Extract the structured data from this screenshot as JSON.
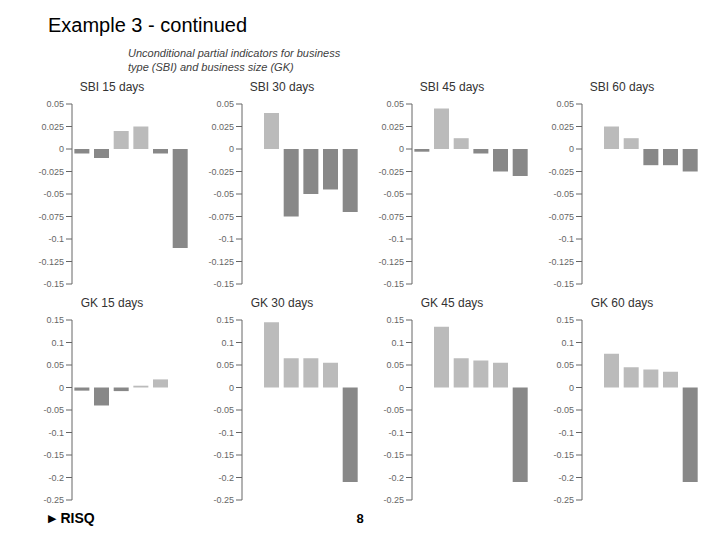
{
  "title": "Example 3 - continued",
  "subtitle": "Unconditional partial indicators for business\ntype (SBI) and business size (GK)",
  "annotations": [
    "8",
    "▶",
    "RISQ"
  ],
  "chart_data": [
    {
      "type": "bar",
      "title": "SBI 15 days",
      "categories": [
        null,
        null,
        null,
        null,
        null,
        null
      ],
      "values": [
        -0.005,
        -0.01,
        0.02,
        0.025,
        -0.005,
        -0.11
      ],
      "colors": [
        "#888888",
        "#888888",
        "#bbbbbb",
        "#bbbbbb",
        "#888888",
        "#888888"
      ],
      "ylim": [
        -0.15,
        0.05
      ],
      "yticks": [
        0.05,
        0.025,
        0,
        -0.025,
        -0.05,
        -0.075,
        -0.1,
        -0.125,
        -0.15
      ],
      "grid": false,
      "tick_labels": "y"
    },
    {
      "type": "bar",
      "title": "SBI 30 days",
      "categories": [
        null,
        null,
        null,
        null,
        null,
        null
      ],
      "values": [
        0.0,
        0.04,
        -0.075,
        -0.05,
        -0.045,
        -0.07
      ],
      "colors": [
        "#bbbbbb",
        "#bbbbbb",
        "#888888",
        "#888888",
        "#888888",
        "#888888"
      ],
      "ylim": [
        -0.15,
        0.05
      ],
      "yticks": [
        0.05,
        0.025,
        0,
        -0.025,
        -0.05,
        -0.075,
        -0.1,
        -0.125,
        -0.15
      ],
      "grid": false,
      "tick_labels": "y"
    },
    {
      "type": "bar",
      "title": "SBI 45 days",
      "categories": [
        null,
        null,
        null,
        null,
        null,
        null
      ],
      "values": [
        -0.003,
        0.045,
        0.012,
        -0.005,
        -0.025,
        -0.03
      ],
      "colors": [
        "#888888",
        "#bbbbbb",
        "#bbbbbb",
        "#888888",
        "#888888",
        "#888888"
      ],
      "ylim": [
        -0.15,
        0.05
      ],
      "yticks": [
        0.05,
        0.025,
        0,
        -0.025,
        -0.05,
        -0.075,
        -0.1,
        -0.125,
        -0.15
      ],
      "grid": false,
      "tick_labels": "y"
    },
    {
      "type": "bar",
      "title": "SBI 60 days",
      "categories": [
        null,
        null,
        null,
        null,
        null,
        null
      ],
      "values": [
        0.0,
        0.025,
        0.012,
        -0.018,
        -0.018,
        -0.025
      ],
      "colors": [
        "#bbbbbb",
        "#bbbbbb",
        "#bbbbbb",
        "#888888",
        "#888888",
        "#888888"
      ],
      "ylim": [
        -0.15,
        0.05
      ],
      "yticks": [
        0.05,
        0.025,
        0,
        -0.025,
        -0.05,
        -0.075,
        -0.1,
        -0.125,
        -0.15
      ],
      "grid": false,
      "tick_labels": "y"
    },
    {
      "type": "bar",
      "title": "GK 15 days",
      "categories": [
        null,
        null,
        null,
        null,
        null,
        null
      ],
      "values": [
        -0.007,
        -0.04,
        -0.008,
        0.004,
        0.018,
        0.0
      ],
      "colors": [
        "#888888",
        "#888888",
        "#888888",
        "#bbbbbb",
        "#bbbbbb",
        "#bbbbbb"
      ],
      "ylim": [
        -0.25,
        0.15
      ],
      "yticks": [
        0.15,
        0.1,
        0.05,
        0,
        -0.05,
        -0.1,
        -0.15,
        -0.2,
        -0.25
      ],
      "grid": false,
      "tick_labels": "y"
    },
    {
      "type": "bar",
      "title": "GK 30 days",
      "categories": [
        null,
        null,
        null,
        null,
        null,
        null
      ],
      "values": [
        0.0,
        0.145,
        0.065,
        0.065,
        0.055,
        -0.21
      ],
      "colors": [
        "#bbbbbb",
        "#bbbbbb",
        "#bbbbbb",
        "#bbbbbb",
        "#bbbbbb",
        "#888888"
      ],
      "ylim": [
        -0.25,
        0.15
      ],
      "yticks": [
        0.15,
        0.1,
        0.05,
        0,
        -0.05,
        -0.1,
        -0.15,
        -0.2,
        -0.25
      ],
      "grid": false,
      "tick_labels": "y"
    },
    {
      "type": "bar",
      "title": "GK 45 days",
      "categories": [
        null,
        null,
        null,
        null,
        null,
        null
      ],
      "values": [
        0.0,
        0.135,
        0.065,
        0.06,
        0.055,
        -0.21
      ],
      "colors": [
        "#bbbbbb",
        "#bbbbbb",
        "#bbbbbb",
        "#bbbbbb",
        "#bbbbbb",
        "#888888"
      ],
      "ylim": [
        -0.25,
        0.15
      ],
      "yticks": [
        0.15,
        0.1,
        0.05,
        0,
        -0.05,
        -0.1,
        -0.15,
        -0.2,
        -0.25
      ],
      "grid": false,
      "tick_labels": "y"
    },
    {
      "type": "bar",
      "title": "GK 60 days",
      "categories": [
        null,
        null,
        null,
        null,
        null,
        null
      ],
      "values": [
        0.0,
        0.075,
        0.045,
        0.04,
        0.035,
        -0.21
      ],
      "colors": [
        "#bbbbbb",
        "#bbbbbb",
        "#bbbbbb",
        "#bbbbbb",
        "#bbbbbb",
        "#888888"
      ],
      "ylim": [
        -0.25,
        0.15
      ],
      "yticks": [
        0.15,
        0.1,
        0.05,
        0,
        -0.05,
        -0.1,
        -0.15,
        -0.2,
        -0.25
      ],
      "grid": false,
      "tick_labels": "y"
    }
  ]
}
